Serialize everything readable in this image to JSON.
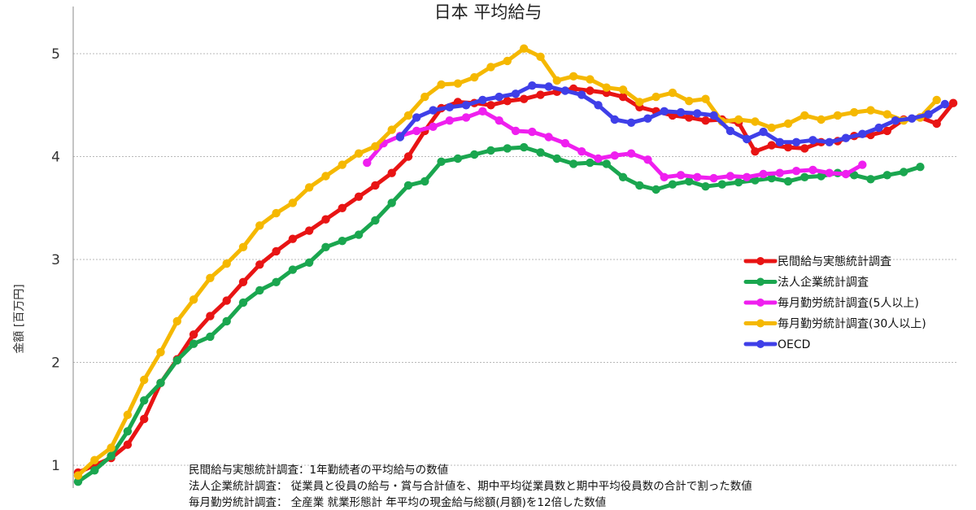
{
  "chart_data": {
    "type": "line",
    "title": "日本 平均給与",
    "ylabel": "金額 [百万円]",
    "xlabel": "",
    "ylim": [
      0.8,
      5.4
    ],
    "yticks": [
      1,
      2,
      3,
      4,
      5
    ],
    "grid": true,
    "legend_position": "right",
    "x": [
      1,
      2,
      3,
      4,
      5,
      6,
      7,
      8,
      9,
      10,
      11,
      12,
      13,
      14,
      15,
      16,
      17,
      18,
      19,
      20,
      21,
      22,
      23,
      24,
      25,
      26,
      27,
      28,
      29,
      30,
      31,
      32,
      33,
      34,
      35,
      36,
      37,
      38,
      39,
      40,
      41,
      42,
      43,
      44,
      45,
      46,
      47,
      48,
      49,
      50,
      51,
      52,
      53,
      54,
      55,
      56,
      57,
      58,
      59,
      60,
      61,
      62,
      63,
      64,
      65,
      66,
      67,
      68,
      69,
      70,
      71,
      72,
      73,
      74,
      75,
      76,
      77,
      78,
      79,
      80,
      81,
      82,
      83,
      84,
      85,
      86,
      87,
      88,
      89,
      90,
      91,
      92,
      93,
      94,
      95,
      96,
      97,
      98,
      99,
      100,
      101,
      102,
      103,
      104,
      105,
      106,
      107,
      108,
      109,
      110,
      111,
      112,
      113,
      114,
      115,
      116,
      117,
      118,
      119,
      120,
      121,
      122,
      123,
      124,
      125,
      126,
      127,
      128,
      129,
      130
    ],
    "series": [
      {
        "name": "民間給与実態統計調査",
        "color": "#e81414",
        "points": [
          [
            0,
            0.93
          ],
          [
            1,
            1.0
          ],
          [
            2,
            1.07
          ],
          [
            3,
            1.2
          ],
          [
            4,
            1.45
          ],
          [
            5,
            1.8
          ],
          [
            6,
            2.03
          ],
          [
            7,
            2.27
          ],
          [
            8,
            2.45
          ],
          [
            9,
            2.6
          ],
          [
            10,
            2.78
          ],
          [
            11,
            2.95
          ],
          [
            12,
            3.08
          ],
          [
            13,
            3.2
          ],
          [
            14,
            3.28
          ],
          [
            15,
            3.39
          ],
          [
            16,
            3.5
          ],
          [
            17,
            3.61
          ],
          [
            18,
            3.72
          ],
          [
            19,
            3.84
          ],
          [
            20,
            4.0
          ],
          [
            21,
            4.25
          ],
          [
            22,
            4.47
          ],
          [
            23,
            4.53
          ],
          [
            24,
            4.52
          ],
          [
            25,
            4.5
          ],
          [
            26,
            4.54
          ],
          [
            27,
            4.56
          ],
          [
            28,
            4.6
          ],
          [
            29,
            4.63
          ],
          [
            30,
            4.66
          ],
          [
            31,
            4.64
          ],
          [
            32,
            4.62
          ],
          [
            33,
            4.58
          ],
          [
            34,
            4.48
          ],
          [
            35,
            4.44
          ],
          [
            36,
            4.4
          ],
          [
            37,
            4.38
          ],
          [
            38,
            4.35
          ],
          [
            39,
            4.36
          ],
          [
            40,
            4.33
          ],
          [
            41,
            4.05
          ],
          [
            42,
            4.11
          ],
          [
            43,
            4.09
          ],
          [
            44,
            4.08
          ],
          [
            45,
            4.14
          ],
          [
            46,
            4.15
          ],
          [
            47,
            4.2
          ],
          [
            48,
            4.21
          ],
          [
            49,
            4.25
          ],
          [
            50,
            4.36
          ],
          [
            51,
            4.38
          ],
          [
            52,
            4.32
          ],
          [
            53,
            4.52
          ]
        ]
      },
      {
        "name": "法人企業統計調査",
        "color": "#1aa64f",
        "points": [
          [
            0,
            0.84
          ],
          [
            1,
            0.95
          ],
          [
            2,
            1.09
          ],
          [
            3,
            1.33
          ],
          [
            4,
            1.63
          ],
          [
            5,
            1.8
          ],
          [
            6,
            2.02
          ],
          [
            7,
            2.18
          ],
          [
            8,
            2.25
          ],
          [
            9,
            2.4
          ],
          [
            10,
            2.58
          ],
          [
            11,
            2.7
          ],
          [
            12,
            2.78
          ],
          [
            13,
            2.9
          ],
          [
            14,
            2.97
          ],
          [
            15,
            3.12
          ],
          [
            16,
            3.18
          ],
          [
            17,
            3.24
          ],
          [
            18,
            3.38
          ],
          [
            19,
            3.55
          ],
          [
            20,
            3.72
          ],
          [
            21,
            3.76
          ],
          [
            22,
            3.95
          ],
          [
            23,
            3.98
          ],
          [
            24,
            4.02
          ],
          [
            25,
            4.06
          ],
          [
            26,
            4.08
          ],
          [
            27,
            4.09
          ],
          [
            28,
            4.04
          ],
          [
            29,
            3.98
          ],
          [
            30,
            3.93
          ],
          [
            31,
            3.94
          ],
          [
            32,
            3.93
          ],
          [
            33,
            3.8
          ],
          [
            34,
            3.72
          ],
          [
            35,
            3.68
          ],
          [
            36,
            3.73
          ],
          [
            37,
            3.76
          ],
          [
            38,
            3.71
          ],
          [
            39,
            3.73
          ],
          [
            40,
            3.75
          ],
          [
            41,
            3.77
          ],
          [
            42,
            3.79
          ],
          [
            43,
            3.76
          ],
          [
            44,
            3.8
          ],
          [
            45,
            3.81
          ],
          [
            46,
            3.84
          ],
          [
            47,
            3.82
          ],
          [
            48,
            3.78
          ],
          [
            49,
            3.82
          ],
          [
            50,
            3.85
          ],
          [
            51,
            3.9
          ]
        ]
      },
      {
        "name": "毎月勤労統計調査(5人以上)",
        "color": "#ef1fef",
        "points": [
          [
            17.5,
            3.94
          ],
          [
            18.5,
            4.13
          ],
          [
            19.5,
            4.2
          ],
          [
            20.5,
            4.25
          ],
          [
            21.5,
            4.29
          ],
          [
            22.5,
            4.35
          ],
          [
            23.5,
            4.38
          ],
          [
            24.5,
            4.44
          ],
          [
            25.5,
            4.35
          ],
          [
            26.5,
            4.25
          ],
          [
            27.5,
            4.24
          ],
          [
            28.5,
            4.19
          ],
          [
            29.5,
            4.13
          ],
          [
            30.5,
            4.05
          ],
          [
            31.5,
            3.98
          ],
          [
            32.5,
            4.01
          ],
          [
            33.5,
            4.03
          ],
          [
            34.5,
            3.97
          ],
          [
            35.5,
            3.8
          ],
          [
            36.5,
            3.82
          ],
          [
            37.5,
            3.8
          ],
          [
            38.5,
            3.79
          ],
          [
            39.5,
            3.81
          ],
          [
            40.5,
            3.8
          ],
          [
            41.5,
            3.83
          ],
          [
            42.5,
            3.84
          ],
          [
            43.5,
            3.86
          ],
          [
            44.5,
            3.87
          ],
          [
            45.5,
            3.84
          ],
          [
            46.5,
            3.83
          ],
          [
            47.5,
            3.92
          ]
        ]
      },
      {
        "name": "毎月勤労統計調査(30人以上)",
        "color": "#f5b800",
        "points": [
          [
            0,
            0.9
          ],
          [
            1,
            1.05
          ],
          [
            2,
            1.17
          ],
          [
            3,
            1.49
          ],
          [
            4,
            1.83
          ],
          [
            5,
            2.1
          ],
          [
            6,
            2.4
          ],
          [
            7,
            2.61
          ],
          [
            8,
            2.82
          ],
          [
            9,
            2.96
          ],
          [
            10,
            3.12
          ],
          [
            11,
            3.33
          ],
          [
            12,
            3.45
          ],
          [
            13,
            3.55
          ],
          [
            14,
            3.7
          ],
          [
            15,
            3.81
          ],
          [
            16,
            3.92
          ],
          [
            17,
            4.03
          ],
          [
            18,
            4.1
          ],
          [
            19,
            4.26
          ],
          [
            20,
            4.4
          ],
          [
            21,
            4.58
          ],
          [
            22,
            4.7
          ],
          [
            23,
            4.71
          ],
          [
            24,
            4.77
          ],
          [
            25,
            4.87
          ],
          [
            26,
            4.93
          ],
          [
            27,
            5.05
          ],
          [
            28,
            4.97
          ],
          [
            29,
            4.74
          ],
          [
            30,
            4.78
          ],
          [
            31,
            4.75
          ],
          [
            32,
            4.67
          ],
          [
            33,
            4.65
          ],
          [
            34,
            4.53
          ],
          [
            35,
            4.58
          ],
          [
            36,
            4.62
          ],
          [
            37,
            4.54
          ],
          [
            38,
            4.56
          ],
          [
            39,
            4.34
          ],
          [
            40,
            4.36
          ],
          [
            41,
            4.34
          ],
          [
            42,
            4.28
          ],
          [
            43,
            4.32
          ],
          [
            44,
            4.4
          ],
          [
            45,
            4.36
          ],
          [
            46,
            4.4
          ],
          [
            47,
            4.43
          ],
          [
            48,
            4.45
          ],
          [
            49,
            4.41
          ],
          [
            50,
            4.35
          ],
          [
            51,
            4.38
          ],
          [
            52,
            4.55
          ]
        ]
      },
      {
        "name": "OECD",
        "color": "#3f3fe8",
        "points": [
          [
            19.5,
            4.19
          ],
          [
            20.5,
            4.38
          ],
          [
            21.5,
            4.45
          ],
          [
            22.5,
            4.48
          ],
          [
            23.5,
            4.5
          ],
          [
            24.5,
            4.55
          ],
          [
            25.5,
            4.58
          ],
          [
            26.5,
            4.61
          ],
          [
            27.5,
            4.69
          ],
          [
            28.5,
            4.68
          ],
          [
            29.5,
            4.64
          ],
          [
            30.5,
            4.6
          ],
          [
            31.5,
            4.5
          ],
          [
            32.5,
            4.36
          ],
          [
            33.5,
            4.33
          ],
          [
            34.5,
            4.37
          ],
          [
            35.5,
            4.44
          ],
          [
            36.5,
            4.43
          ],
          [
            37.5,
            4.42
          ],
          [
            38.5,
            4.4
          ],
          [
            39.5,
            4.25
          ],
          [
            40.5,
            4.17
          ],
          [
            41.5,
            4.24
          ],
          [
            42.5,
            4.14
          ],
          [
            43.5,
            4.14
          ],
          [
            44.5,
            4.16
          ],
          [
            45.5,
            4.14
          ],
          [
            46.5,
            4.18
          ],
          [
            47.5,
            4.22
          ],
          [
            48.5,
            4.28
          ],
          [
            49.5,
            4.35
          ],
          [
            50.5,
            4.37
          ],
          [
            51.5,
            4.41
          ],
          [
            52.5,
            4.51
          ]
        ]
      }
    ],
    "notes": [
      "民間給与実態統計調査：1年勤続者の平均給与の数値",
      "法人企業統計調査：  従業員と役員の給与・賞与合計値を、期中平均従業員数と期中平均役員数の合計で割った数値",
      "毎月勤労統計調査：  全産業 就業形態計 年平均の現金給与総額(月額)を12倍した数値"
    ]
  }
}
